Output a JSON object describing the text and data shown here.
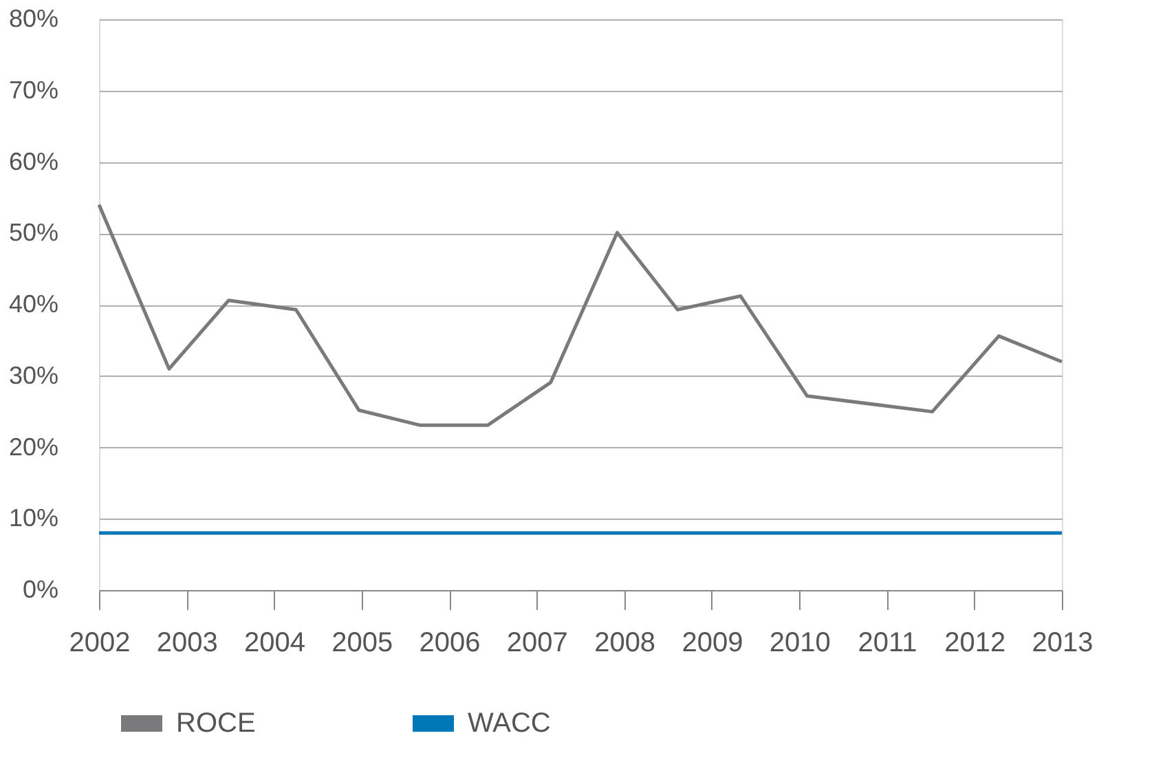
{
  "chart_data": {
    "type": "line",
    "xlim": [
      2002,
      2013
    ],
    "xticks": [
      2002,
      2003,
      2004,
      2005,
      2006,
      2007,
      2008,
      2009,
      2010,
      2011,
      2012,
      2013
    ],
    "ylim": [
      0,
      80
    ],
    "yticks": [
      {
        "value": 0,
        "label": "0%"
      },
      {
        "value": 10,
        "label": "10%"
      },
      {
        "value": 20,
        "label": "20%"
      },
      {
        "value": 30,
        "label": "30%"
      },
      {
        "value": 40,
        "label": "40%"
      },
      {
        "value": 50,
        "label": "50%"
      },
      {
        "value": 60,
        "label": "60%"
      },
      {
        "value": 70,
        "label": "70%"
      },
      {
        "value": 80,
        "label": "80%"
      }
    ],
    "grid": "y",
    "legend": "bottom",
    "marker": "none",
    "line_style": "solid",
    "series": [
      {
        "name": "ROCE",
        "color": "#7a7a7c",
        "x": [
          2002,
          2002.8,
          2003.48,
          2004.25,
          2004.97,
          2005.67,
          2006.44,
          2007.16,
          2007.92,
          2008.61,
          2009.33,
          2010.09,
          2011.52,
          2012.28,
          2013
        ],
        "values": [
          54,
          31,
          40.6,
          39.3,
          25.2,
          23.1,
          23.1,
          29.1,
          50.1,
          39.3,
          41.2,
          27.2,
          25,
          35.6,
          32
        ]
      },
      {
        "name": "WACC",
        "color": "#0078b8",
        "x": [
          2002,
          2013
        ],
        "values": [
          8,
          8
        ]
      }
    ]
  }
}
